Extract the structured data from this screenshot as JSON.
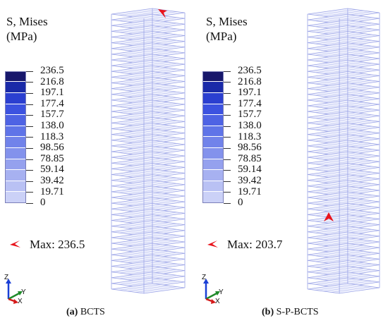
{
  "panels": [
    {
      "id": "a",
      "title_line1": "S, Mises",
      "title_line2": "(MPa)",
      "legend_values": [
        "236.5",
        "216.8",
        "197.1",
        "177.4",
        "157.7",
        "138.0",
        "118.3",
        "98.56",
        "78.85",
        "59.14",
        "39.42",
        "19.71",
        "0"
      ],
      "max_label": "Max: 236.5",
      "caption_letter": "(a)",
      "caption_text": " BCTS",
      "max_location": "top"
    },
    {
      "id": "b",
      "title_line1": "S, Mises",
      "title_line2": "(MPa)",
      "legend_values": [
        "236.5",
        "216.8",
        "197.1",
        "177.4",
        "157.7",
        "138.0",
        "118.3",
        "98.56",
        "78.85",
        "59.14",
        "39.42",
        "19.71",
        "0"
      ],
      "max_label": "Max: 203.7",
      "caption_letter": "(b)",
      "caption_text": " S-P-BCTS",
      "max_location": "mid-left"
    }
  ],
  "axis_labels": {
    "z": "Z",
    "y": "Y",
    "x": "X"
  },
  "colors": {
    "legend_bands": [
      "#17176b",
      "#1a2aa8",
      "#2b3fd0",
      "#3c52e0",
      "#4e63e4",
      "#5f74e8",
      "#7183ea",
      "#8392ec",
      "#95a1ee",
      "#a7b1f1",
      "#b9c1f4",
      "#cbd1f7",
      "#dde1fb"
    ],
    "max_marker": "#e8141c",
    "tower_stroke": "#9aa3e6",
    "axis_z": "#1a3fd6",
    "axis_y": "#1f8a2a",
    "axis_x": "#d41a1a"
  }
}
